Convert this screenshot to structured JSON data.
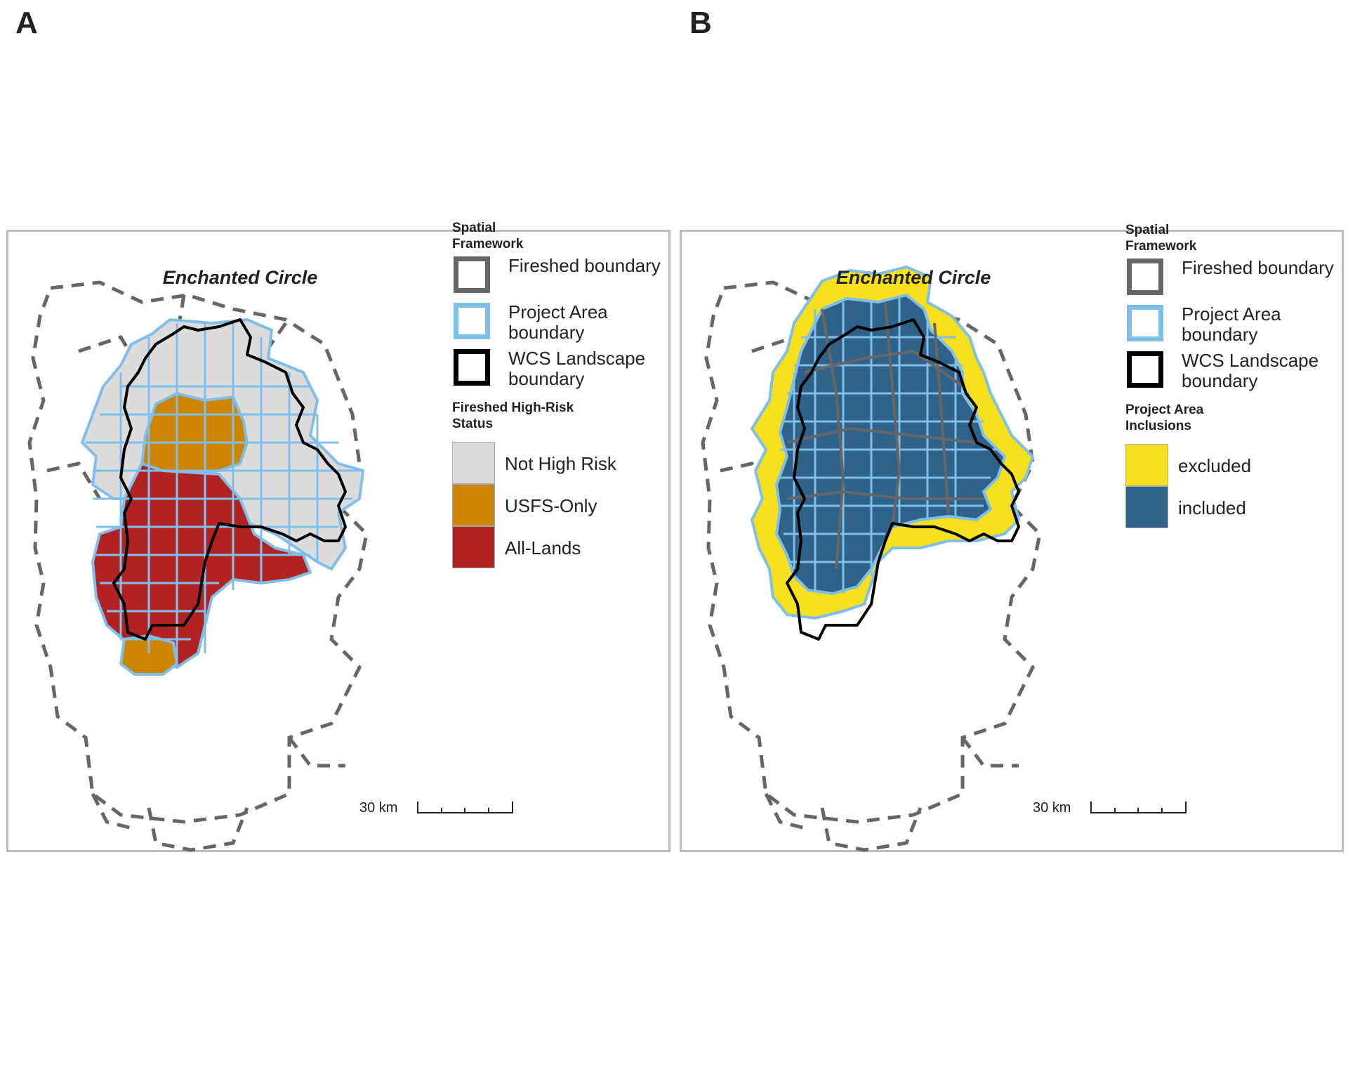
{
  "panels": [
    {
      "letter": "A",
      "title": "Enchanted Circle",
      "scale_label": "30 km",
      "legend": {
        "framework_heading": "Spatial Framework",
        "framework_items": [
          {
            "label": "Fireshed boundary",
            "stroke": "#666666"
          },
          {
            "label": "Project Area boundary",
            "stroke": "#7fbfea"
          },
          {
            "label": "WCS Landscape boundary",
            "stroke": "#000000"
          }
        ],
        "status_heading": "Fireshed High-Risk Status",
        "status_items": [
          {
            "label": "Not High Risk",
            "color": "#dcdcdc"
          },
          {
            "label": "USFS-Only",
            "color": "#cd8500"
          },
          {
            "label": "All-Lands",
            "color": "#b22222"
          }
        ]
      }
    },
    {
      "letter": "B",
      "title": "Enchanted Circle",
      "scale_label": "30 km",
      "legend": {
        "framework_heading": "Spatial Framework",
        "framework_items": [
          {
            "label": "Fireshed boundary",
            "stroke": "#666666"
          },
          {
            "label": "Project Area boundary",
            "stroke": "#7fbfea"
          },
          {
            "label": "WCS Landscape boundary",
            "stroke": "#000000"
          }
        ],
        "status_heading": "Project Area Inclusions",
        "status_items": [
          {
            "label": "excluded",
            "color": "#f7e01c"
          },
          {
            "label": "included",
            "color": "#2e6288"
          }
        ]
      }
    }
  ]
}
